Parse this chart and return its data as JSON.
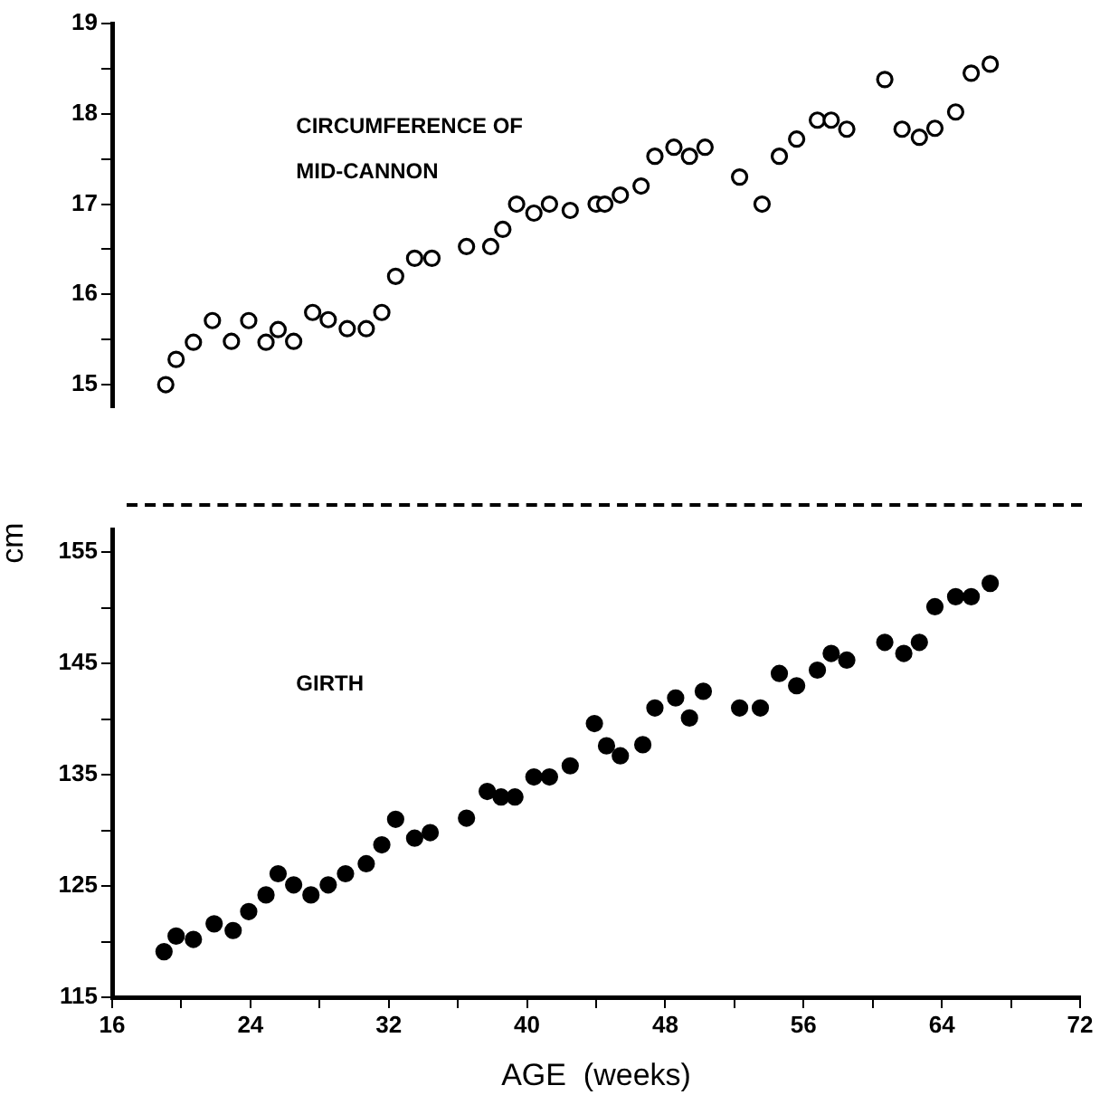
{
  "chart_data": [
    {
      "type": "scatter",
      "xlim": [
        16,
        72
      ],
      "ylim": [
        14.75,
        19
      ],
      "tick_labels": "y",
      "grid": false,
      "legend": false,
      "marker": "circle",
      "yticks": [
        15,
        {
          "value": 15.5,
          "label": null
        },
        16,
        {
          "value": 16.5,
          "label": null
        },
        17,
        {
          "value": 17.5,
          "label": null
        },
        18,
        {
          "value": 18.5,
          "label": null
        },
        19
      ],
      "series": [
        {
          "name": "CIRCUMFERENCE OF\nMID-CANNON",
          "color": "#000000",
          "x": [
            19.1,
            19.7,
            20.7,
            21.8,
            22.9,
            23.9,
            24.9,
            25.6,
            26.5,
            27.6,
            28.5,
            29.6,
            30.7,
            31.6,
            32.4,
            33.5,
            34.5,
            36.5,
            37.9,
            38.6,
            39.4,
            40.4,
            41.3,
            42.5,
            44.0,
            44.5,
            45.4,
            46.6,
            47.4,
            48.5,
            49.4,
            50.3,
            52.3,
            53.6,
            54.6,
            55.6,
            56.8,
            57.6,
            58.5,
            60.7,
            61.7,
            62.7,
            63.6,
            64.8,
            65.7,
            66.8
          ],
          "values": [
            15.0,
            15.28,
            15.47,
            15.71,
            15.48,
            15.71,
            15.47,
            15.61,
            15.48,
            15.8,
            15.72,
            15.62,
            15.62,
            15.8,
            16.2,
            16.4,
            16.4,
            16.53,
            16.53,
            16.72,
            17.0,
            16.9,
            17.0,
            16.93,
            17.0,
            17.0,
            17.1,
            17.2,
            17.53,
            17.63,
            17.53,
            17.63,
            17.3,
            17.0,
            17.53,
            17.72,
            17.93,
            17.93,
            17.83,
            18.38,
            17.83,
            17.74,
            17.84,
            18.02,
            18.45,
            18.55
          ]
        }
      ]
    },
    {
      "type": "scatter",
      "xlim": [
        16,
        72
      ],
      "ylim": [
        115,
        157
      ],
      "grid": false,
      "legend": false,
      "marker": "circle",
      "xlabel": "AGE  (weeks)",
      "ylabel": "cm",
      "xticks": [
        16,
        {
          "value": 20,
          "label": null
        },
        24,
        {
          "value": 28,
          "label": null
        },
        32,
        {
          "value": 36,
          "label": null
        },
        40,
        {
          "value": 44,
          "label": null
        },
        48,
        {
          "value": 52,
          "label": null
        },
        56,
        {
          "value": 60,
          "label": null
        },
        64,
        {
          "value": 68,
          "label": null
        },
        72
      ],
      "yticks": [
        115,
        {
          "value": 120,
          "label": null
        },
        125,
        {
          "value": 130,
          "label": null
        },
        135,
        {
          "value": 140,
          "label": null
        },
        145,
        {
          "value": 150,
          "label": null
        },
        155
      ],
      "series": [
        {
          "name": "GIRTH",
          "color": "#000000",
          "x": [
            19.0,
            19.7,
            20.7,
            21.9,
            23.0,
            23.9,
            24.9,
            25.6,
            26.5,
            27.5,
            28.5,
            29.5,
            30.7,
            31.6,
            32.4,
            33.5,
            34.4,
            36.5,
            37.7,
            38.5,
            39.3,
            40.4,
            41.3,
            42.5,
            43.9,
            44.6,
            45.4,
            46.7,
            47.4,
            48.6,
            49.4,
            50.2,
            52.3,
            53.5,
            54.6,
            55.6,
            56.8,
            57.6,
            58.5,
            60.7,
            61.8,
            62.7,
            63.6,
            64.8,
            65.7,
            66.8
          ],
          "values": [
            119.1,
            120.5,
            120.2,
            121.6,
            121.0,
            122.7,
            124.2,
            126.1,
            125.1,
            124.2,
            125.1,
            126.1,
            127.0,
            128.7,
            131.0,
            129.3,
            129.8,
            131.1,
            133.5,
            133.0,
            133.0,
            134.8,
            134.8,
            135.8,
            139.6,
            137.6,
            136.7,
            137.7,
            141.0,
            141.9,
            140.1,
            142.5,
            141.0,
            141.0,
            144.1,
            143.0,
            144.4,
            145.9,
            145.3,
            146.9,
            145.9,
            146.9,
            150.1,
            151.0,
            151.0,
            152.2
          ]
        }
      ]
    }
  ]
}
